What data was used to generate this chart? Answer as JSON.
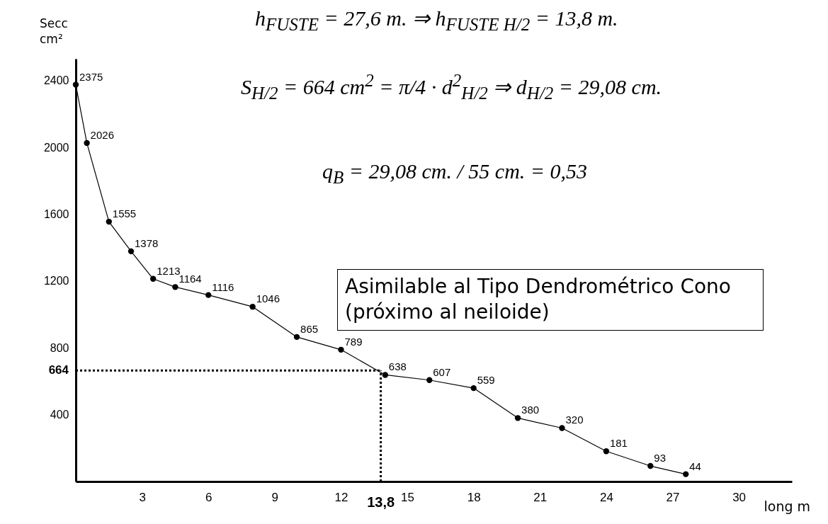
{
  "chart_data": {
    "type": "line",
    "xlabel": "long m",
    "ylabel": "Secc cm²",
    "x": [
      0,
      0.5,
      1.5,
      2.5,
      3.5,
      4.5,
      6,
      8,
      10,
      12,
      14,
      16,
      18,
      20,
      22,
      24,
      26,
      27.6
    ],
    "series": [
      {
        "color": "#000000",
        "values": [
          2375,
          2026,
          1555,
          1378,
          1213,
          1164,
          1116,
          1046,
          865,
          789,
          638,
          607,
          559,
          380,
          320,
          181,
          93,
          44
        ]
      }
    ],
    "xlim": [
      0,
      32.4
    ],
    "ylim": [
      0,
      2530
    ],
    "xticks": [
      3,
      6,
      9,
      12,
      15,
      18,
      21,
      24,
      27,
      30
    ],
    "yticks": [
      400,
      800,
      1200,
      1600,
      2000,
      2400
    ],
    "ref_lines": [
      {
        "axis": "y",
        "value": 664,
        "label": "664",
        "line_style": "dotted",
        "color": "#000000"
      },
      {
        "axis": "x",
        "value": 13.8,
        "label": "13,8",
        "line_style": "dotted",
        "color": "#000000"
      }
    ],
    "annotations": [
      "h$_{FUSTE}$ = 27,6 m. ⇒ h$_{FUSTE H/2}$ = 13,8 m.",
      "S$_{H/2}$ = 664 cm$^{2}$ = π/4 · d$^{2}$$_{H/2}$ ⇒ d$_{H/2}$ = 29,08 cm.",
      "q$_{B}$ = 29,08 cm. / 55 cm. = 0,53",
      "Asimilable al Tipo Dendrométrico Cono (próximo al neiloide)"
    ],
    "data_labels": true,
    "marker": "circle",
    "line_style": "solid",
    "grid": false
  }
}
